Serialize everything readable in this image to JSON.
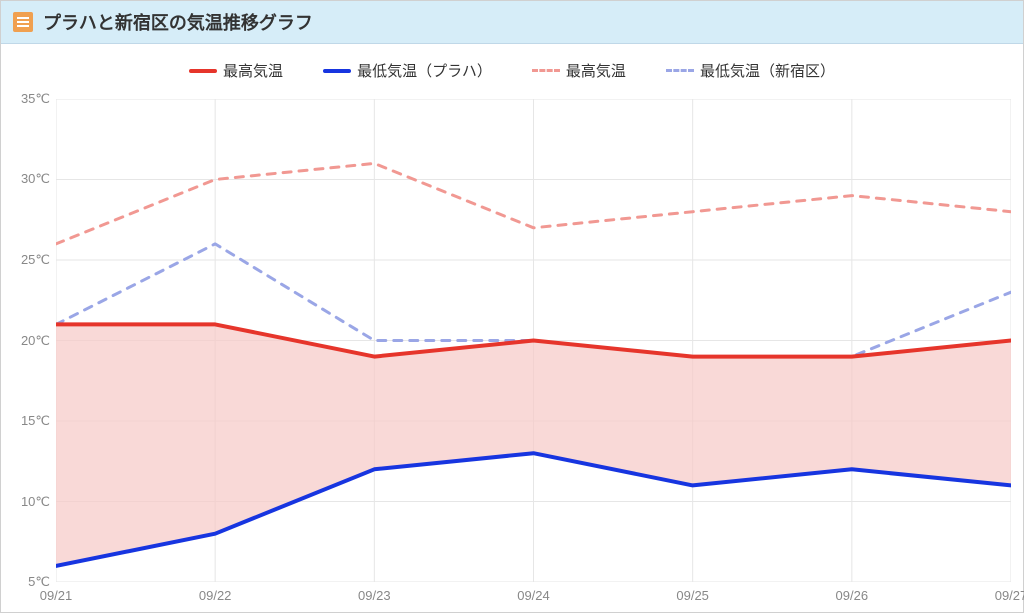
{
  "header": {
    "title": "プラハと新宿区の気温推移グラフ"
  },
  "legend": {
    "items": [
      {
        "label": "最高気温",
        "color": "#e6352b",
        "style": "solid"
      },
      {
        "label": "最低気温（プラハ）",
        "color": "#1735e0",
        "style": "solid"
      },
      {
        "label": "最高気温",
        "color": "#f19892",
        "style": "dashed"
      },
      {
        "label": "最低気温（新宿区）",
        "color": "#9aa6e6",
        "style": "dashed"
      }
    ]
  },
  "chart": {
    "type": "line",
    "background_color": "#ffffff",
    "grid_color": "#e6e6e6",
    "axis_color": "#cccccc",
    "label_color": "#888888",
    "label_fontsize": 13,
    "ylim": [
      5,
      35
    ],
    "ytick_step": 5,
    "y_unit": "℃",
    "x_categories": [
      "09/21",
      "09/22",
      "09/23",
      "09/24",
      "09/25",
      "09/26",
      "09/27"
    ],
    "fill_between": {
      "upper": "prague_high",
      "lower": "prague_low",
      "color": "#f7c9c6",
      "opacity": 0.7
    },
    "series": {
      "prague_high": {
        "values": [
          21,
          21,
          19,
          20,
          19,
          19,
          20
        ],
        "color": "#e6352b",
        "style": "solid",
        "width": 4
      },
      "prague_low": {
        "values": [
          6,
          8,
          12,
          13,
          11,
          12,
          11
        ],
        "color": "#1735e0",
        "style": "solid",
        "width": 4
      },
      "shinjuku_high": {
        "values": [
          26,
          30,
          31,
          27,
          28,
          29,
          28
        ],
        "color": "#f19892",
        "style": "dashed",
        "width": 3
      },
      "shinjuku_low": {
        "values": [
          21,
          26,
          20,
          20,
          19,
          19,
          23
        ],
        "color": "#9aa6e6",
        "style": "dashed",
        "width": 3
      }
    }
  }
}
